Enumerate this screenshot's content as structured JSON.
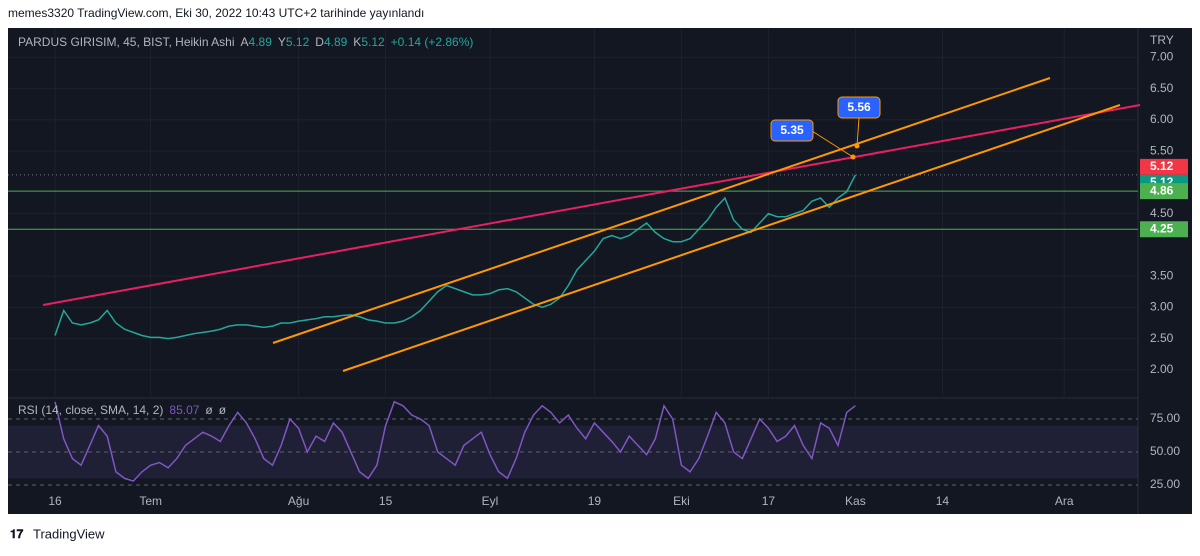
{
  "header": {
    "published": "memes3320 TradingView.com, Eki 30, 2022 10:43 UTC+2 tarihinde yayınlandı",
    "footer": "TradingView"
  },
  "chart_data": [
    {
      "type": "line",
      "title": "PARDUS GIRISIM, 45, BIST, Heikin Ashi",
      "ohlc": [
        {
          "label": "A",
          "value": 4.89
        },
        {
          "label": "Y",
          "value": 5.12
        },
        {
          "label": "D",
          "value": 4.89
        },
        {
          "label": "K",
          "value": 5.12
        }
      ],
      "change": "+0.14 (+2.86%)",
      "currency": "TRY",
      "color": "#26a69a",
      "categories": [
        "16",
        null,
        null,
        null,
        null,
        null,
        null,
        null,
        null,
        null,
        null,
        "Tem",
        null,
        null,
        null,
        null,
        null,
        null,
        null,
        null,
        null,
        null,
        null,
        null,
        null,
        null,
        null,
        null,
        "Ağu",
        null,
        null,
        null,
        null,
        null,
        null,
        null,
        null,
        null,
        "15",
        null,
        null,
        null,
        null,
        null,
        null,
        null,
        null,
        null,
        null,
        null,
        "Eyl",
        null,
        null,
        null,
        null,
        null,
        null,
        null,
        null,
        null,
        null,
        null,
        "19",
        null,
        null,
        null,
        null,
        null,
        null,
        null,
        null,
        null,
        "Eki",
        null,
        null,
        null,
        null,
        null,
        null,
        null,
        null,
        null,
        "17",
        null,
        null,
        null,
        null,
        null,
        null,
        null,
        null,
        null,
        "Kas",
        null,
        null,
        null,
        null,
        null,
        null,
        null,
        null,
        null,
        "14",
        null,
        null,
        null,
        null,
        null,
        null,
        null,
        null,
        null,
        null,
        null,
        null,
        null,
        "Ara",
        null,
        null,
        null,
        null,
        null,
        null,
        null,
        null
      ],
      "values": [
        2.55,
        2.95,
        2.75,
        2.72,
        2.75,
        2.8,
        2.95,
        2.75,
        2.65,
        2.6,
        2.55,
        2.52,
        2.52,
        2.5,
        2.52,
        2.55,
        2.58,
        2.6,
        2.62,
        2.65,
        2.7,
        2.72,
        2.72,
        2.7,
        2.68,
        2.7,
        2.75,
        2.75,
        2.78,
        2.8,
        2.82,
        2.85,
        2.85,
        2.87,
        2.88,
        2.85,
        2.8,
        2.78,
        2.75,
        2.75,
        2.78,
        2.85,
        2.95,
        3.1,
        3.25,
        3.35,
        3.3,
        3.25,
        3.2,
        3.2,
        3.22,
        3.28,
        3.3,
        3.25,
        3.15,
        3.05,
        3.0,
        3.05,
        3.15,
        3.35,
        3.6,
        3.75,
        3.9,
        4.1,
        4.15,
        4.1,
        4.15,
        4.25,
        4.35,
        4.2,
        4.1,
        4.05,
        4.05,
        4.1,
        4.25,
        4.4,
        4.6,
        4.75,
        4.4,
        4.25,
        4.2,
        4.35,
        4.5,
        4.45,
        4.45,
        4.5,
        4.55,
        4.7,
        4.75,
        4.6,
        4.75,
        4.85,
        5.12,
        null,
        null,
        null,
        null,
        null,
        null,
        null,
        null,
        null,
        null,
        null,
        null,
        null,
        null,
        null,
        null,
        null,
        null,
        null,
        null,
        null,
        null,
        null,
        null,
        null,
        null,
        null,
        null,
        null,
        null,
        null,
        null
      ],
      "ylim": [
        1.55,
        7.47
      ],
      "yticks": [
        {
          "value": 2,
          "label": "2.00"
        },
        {
          "value": 2.5,
          "label": "2.50"
        },
        {
          "value": 3,
          "label": "3.00"
        },
        {
          "value": 3.5,
          "label": "3.50"
        },
        {
          "value": 4.5,
          "label": "4.50"
        },
        {
          "value": 5.5,
          "label": "5.50"
        },
        {
          "value": 6,
          "label": "6.00"
        },
        {
          "value": 6.5,
          "label": "6.50"
        },
        {
          "value": 7,
          "label": "7.00"
        }
      ],
      "price_tags": [
        {
          "value": 5.12,
          "color": "#f23645"
        },
        {
          "value": 5.12,
          "color": "#089981",
          "line": "dotted"
        },
        {
          "value": 4.86,
          "color": "#4caf50",
          "line": "solid"
        },
        {
          "value": 4.25,
          "color": "#4caf50",
          "line": "solid"
        }
      ],
      "annotations": [
        5.35,
        5.56
      ]
    },
    {
      "type": "line",
      "title": "RSI (14, close, SMA, 14, 2)",
      "last": "85.07",
      "extras": [
        "ø",
        "ø"
      ],
      "color": "#7e57c2",
      "values": [
        88,
        60,
        45,
        40,
        55,
        70,
        62,
        35,
        30,
        28,
        35,
        40,
        42,
        38,
        45,
        55,
        60,
        65,
        62,
        58,
        70,
        80,
        72,
        60,
        45,
        40,
        55,
        75,
        68,
        50,
        62,
        58,
        72,
        65,
        50,
        35,
        30,
        40,
        70,
        88,
        85,
        78,
        75,
        70,
        50,
        45,
        40,
        55,
        60,
        65,
        48,
        35,
        30,
        45,
        65,
        78,
        85,
        80,
        72,
        78,
        68,
        60,
        72,
        65,
        58,
        50,
        62,
        55,
        48,
        60,
        85,
        75,
        40,
        35,
        45,
        62,
        80,
        72,
        50,
        45,
        60,
        75,
        68,
        58,
        62,
        70,
        55,
        45,
        72,
        68,
        55,
        80,
        85.07,
        null,
        null,
        null,
        null,
        null,
        null,
        null,
        null,
        null,
        null,
        null,
        null,
        null,
        null,
        null,
        null,
        null,
        null,
        null,
        null,
        null,
        null,
        null,
        null,
        null,
        null,
        null,
        null,
        null,
        null,
        null,
        null
      ],
      "ylim": [
        21.2,
        90.9
      ],
      "yticks": [
        {
          "value": 25,
          "label": "25.00"
        },
        {
          "value": 50,
          "label": "50.00"
        },
        {
          "value": 75,
          "label": "75.00"
        }
      ],
      "band": [
        30,
        70
      ]
    }
  ]
}
